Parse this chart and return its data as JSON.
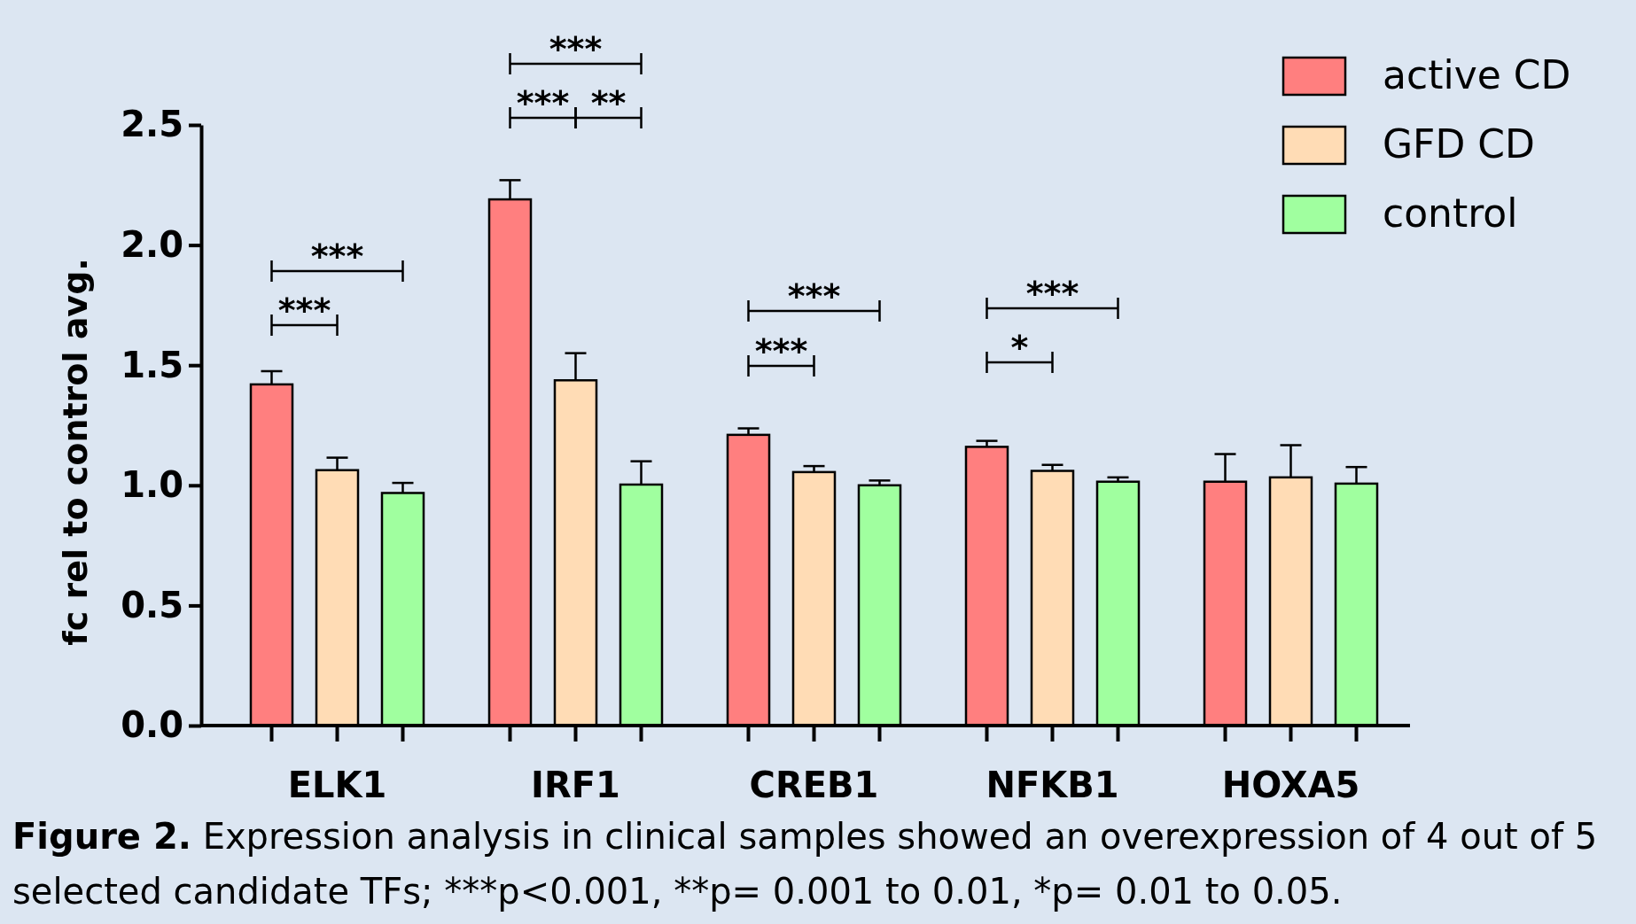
{
  "chart_data": {
    "type": "bar",
    "ylabel": "fc rel to control avg.",
    "categories": [
      "ELK1",
      "IRF1",
      "CREB1",
      "NFKB1",
      "HOXA5"
    ],
    "series": [
      {
        "name": "active CD",
        "color": "#ff7f7f",
        "values": [
          1.42,
          2.19,
          1.21,
          1.16,
          1.015
        ],
        "errors": [
          [
            1.42,
            1.475
          ],
          [
            2.19,
            2.27
          ],
          [
            1.21,
            1.237
          ],
          [
            1.16,
            1.185
          ],
          [
            1.015,
            1.13
          ]
        ]
      },
      {
        "name": "GFD CD",
        "color": "#ffdcb5",
        "values": [
          1.063,
          1.437,
          1.055,
          1.06,
          1.033
        ],
        "errors": [
          [
            1.063,
            1.115
          ],
          [
            1.437,
            1.55
          ],
          [
            1.055,
            1.08
          ],
          [
            1.06,
            1.085
          ],
          [
            1.033,
            1.167
          ]
        ]
      },
      {
        "name": "control",
        "color": "#a0ff9f",
        "values": [
          0.968,
          1.003,
          1.0,
          1.015,
          1.007
        ],
        "errors": [
          [
            0.968,
            1.01
          ],
          [
            1.003,
            1.1
          ],
          [
            1.0,
            1.02
          ],
          [
            1.015,
            1.033
          ],
          [
            1.007,
            1.076
          ]
        ]
      }
    ],
    "ylim": [
      0,
      2.5
    ],
    "yticks": [
      {
        "value": 0,
        "label": "0.0"
      },
      {
        "value": 0.5,
        "label": "0.5"
      },
      {
        "value": 1,
        "label": "1.0"
      },
      {
        "value": 1.5,
        "label": "1.5"
      },
      {
        "value": 2,
        "label": "2.0"
      },
      {
        "value": 2.5,
        "label": "2.5"
      }
    ],
    "grid": false,
    "legend": "top right",
    "annotations": [
      "***",
      "***",
      "***",
      "***",
      "**",
      "***",
      "***",
      "***",
      "*",
      "Figure 2. Expression analysis in clinical samples showed an overexpression of 4 out of 5 selected candidate TFs; ***p<0.001, **p= 0.001 to 0.01, *p= 0.01 to 0.05."
    ]
  }
}
